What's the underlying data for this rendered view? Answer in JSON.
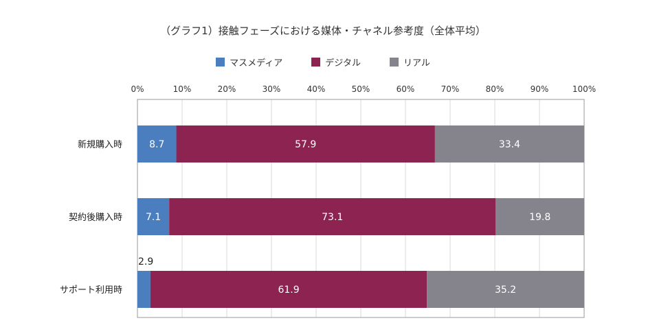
{
  "chart_data": {
    "type": "bar",
    "orientation": "horizontal",
    "stacked": true,
    "title": "（グラフ1）接触フェーズにおける媒体・チャネル参考度（全体平均）",
    "categories": [
      "新規購入時",
      "契約後購入時",
      "サポート利用時"
    ],
    "x_ticks": [
      "0%",
      "10%",
      "20%",
      "30%",
      "40%",
      "50%",
      "60%",
      "70%",
      "80%",
      "90%",
      "100%"
    ],
    "xlim": [
      0,
      100
    ],
    "grid": true,
    "legend_position": "top",
    "series": [
      {
        "name": "マスメディア",
        "color": "#4a7ebf",
        "values": [
          8.7,
          7.1,
          2.9
        ],
        "labels": [
          "8.7",
          "7.1",
          "2.9"
        ]
      },
      {
        "name": "デジタル",
        "color": "#8c2350",
        "values": [
          57.9,
          73.1,
          61.9
        ],
        "labels": [
          "57.9",
          "73.1",
          "61.9"
        ]
      },
      {
        "name": "リアル",
        "color": "#85848d",
        "values": [
          33.4,
          19.8,
          35.2
        ],
        "labels": [
          "33.4",
          "19.8",
          "35.2"
        ]
      }
    ]
  }
}
